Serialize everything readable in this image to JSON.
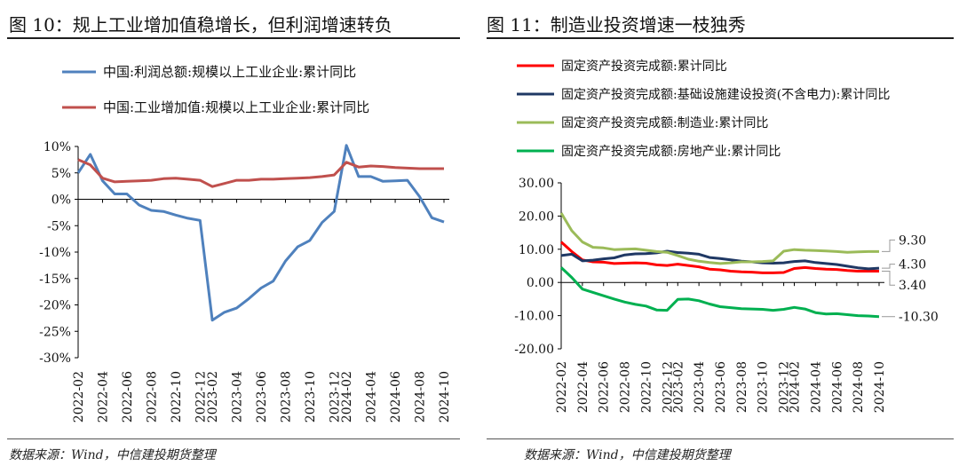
{
  "left_panel": {
    "title": "图 10：规上工业增加值稳增长，但利润增速转负",
    "source": "数据来源：Wind，中信建投期货整理"
  },
  "right_panel": {
    "title": "图 11：制造业投资增速一枝独秀",
    "source": "数据来源：Wind，中信建投期货整理"
  },
  "colors": {
    "blue": "#4f81bd",
    "dark_red": "#c0504d",
    "red": "#ff0000",
    "navy": "#1f3864",
    "light_green": "#9bbb59",
    "green": "#00b050"
  },
  "chart_data": [
    {
      "type": "line",
      "x": [
        "2022-02",
        "2022-03",
        "2022-04",
        "2022-05",
        "2022-06",
        "2022-07",
        "2022-08",
        "2022-09",
        "2022-10",
        "2022-11",
        "2022-12",
        "2023-02",
        "2023-03",
        "2023-04",
        "2023-05",
        "2023-06",
        "2023-07",
        "2023-08",
        "2023-09",
        "2023-10",
        "2023-11",
        "2023-12",
        "2024-02",
        "2024-03",
        "2024-04",
        "2024-05",
        "2024-06",
        "2024-07",
        "2024-08",
        "2024-09",
        "2024-10"
      ],
      "x_ticks": [
        "2022-02",
        "2022-04",
        "2022-06",
        "2022-08",
        "2022-10",
        "2022-12",
        "2023-02",
        "2023-04",
        "2023-06",
        "2023-08",
        "2023-10",
        "2023-12",
        "2024-02",
        "2024-04",
        "2024-06",
        "2024-08",
        "2024-10"
      ],
      "y_ticks": [
        "10%",
        "5%",
        "0%",
        "-5%",
        "-10%",
        "-15%",
        "-20%",
        "-25%",
        "-30%"
      ],
      "ylim": [
        -30,
        10
      ],
      "legend_position": "top",
      "series": [
        {
          "name": "中国:利润总额:规模以上工业企业:累计同比",
          "color": "#4f81bd",
          "values": [
            5.0,
            8.5,
            3.5,
            1.0,
            1.0,
            -1.1,
            -2.1,
            -2.3,
            -3.0,
            -3.6,
            -4.0,
            -22.9,
            -21.4,
            -20.6,
            -18.8,
            -16.8,
            -15.5,
            -11.7,
            -9.0,
            -7.8,
            -4.4,
            -2.3,
            10.2,
            4.3,
            4.3,
            3.4,
            3.5,
            3.6,
            0.5,
            -3.5,
            -4.3
          ]
        },
        {
          "name": "中国:工业增加值:规模以上工业企业:累计同比",
          "color": "#c0504d",
          "values": [
            7.5,
            6.5,
            4.0,
            3.3,
            3.4,
            3.5,
            3.6,
            3.9,
            4.0,
            3.8,
            3.6,
            2.4,
            3.0,
            3.6,
            3.6,
            3.8,
            3.8,
            3.9,
            4.0,
            4.1,
            4.3,
            4.6,
            7.0,
            6.1,
            6.3,
            6.2,
            6.0,
            5.9,
            5.8,
            5.8,
            5.8
          ]
        }
      ]
    },
    {
      "type": "line",
      "x": [
        "2022-02",
        "2022-03",
        "2022-04",
        "2022-05",
        "2022-06",
        "2022-07",
        "2022-08",
        "2022-09",
        "2022-10",
        "2022-11",
        "2022-12",
        "2023-02",
        "2023-03",
        "2023-04",
        "2023-05",
        "2023-06",
        "2023-07",
        "2023-08",
        "2023-09",
        "2023-10",
        "2023-11",
        "2023-12",
        "2024-02",
        "2024-03",
        "2024-04",
        "2024-05",
        "2024-06",
        "2024-07",
        "2024-08",
        "2024-09",
        "2024-10"
      ],
      "x_ticks": [
        "2022-02",
        "2022-04",
        "2022-06",
        "2022-08",
        "2022-10",
        "2022-12",
        "2023-02",
        "2023-04",
        "2023-06",
        "2023-08",
        "2023-10",
        "2023-12",
        "2024-02",
        "2024-04",
        "2024-06",
        "2024-08",
        "2024-10"
      ],
      "y_ticks": [
        "30.00",
        "20.00",
        "10.00",
        "0.00",
        "-10.00",
        "-20.00"
      ],
      "ylim": [
        -20,
        30
      ],
      "legend_position": "top",
      "end_labels": [
        "9.30",
        "4.30",
        "3.40",
        "-10.30"
      ],
      "series": [
        {
          "name": "固定资产投资完成额:累计同比",
          "color": "#ff0000",
          "values": [
            12.2,
            9.3,
            6.8,
            6.2,
            6.1,
            5.7,
            5.8,
            5.9,
            5.8,
            5.3,
            5.1,
            5.5,
            5.1,
            4.7,
            4.0,
            3.8,
            3.4,
            3.2,
            3.1,
            2.9,
            2.9,
            3.0,
            4.2,
            4.5,
            4.2,
            4.0,
            3.9,
            3.6,
            3.4,
            3.4,
            3.4
          ]
        },
        {
          "name": "固定资产投资完成额:基础设施建设投资(不含电力):累计同比",
          "color": "#1f3864",
          "values": [
            8.1,
            8.5,
            6.5,
            6.7,
            7.1,
            7.4,
            8.3,
            8.6,
            8.7,
            8.9,
            9.4,
            9.0,
            8.8,
            8.5,
            7.5,
            7.2,
            6.8,
            6.4,
            6.2,
            5.9,
            5.8,
            5.9,
            6.3,
            6.5,
            6.0,
            5.7,
            5.4,
            4.9,
            4.4,
            4.1,
            4.3
          ]
        },
        {
          "name": "固定资产投资完成额:制造业:累计同比",
          "color": "#9bbb59",
          "values": [
            20.9,
            15.6,
            12.2,
            10.6,
            10.4,
            9.9,
            10.0,
            10.1,
            9.7,
            9.3,
            9.1,
            8.1,
            7.0,
            6.4,
            6.0,
            5.7,
            5.9,
            6.2,
            6.2,
            6.3,
            6.5,
            9.4,
            9.9,
            9.7,
            9.6,
            9.5,
            9.3,
            9.1,
            9.2,
            9.3,
            9.3
          ]
        },
        {
          "name": "固定资产投资完成额:房地产业:累计同比",
          "color": "#00b050",
          "values": [
            4.5,
            1.5,
            -2.0,
            -3.0,
            -4.0,
            -5.0,
            -5.9,
            -6.6,
            -7.1,
            -8.3,
            -8.4,
            -5.1,
            -5.0,
            -5.5,
            -6.5,
            -7.3,
            -7.6,
            -7.9,
            -8.0,
            -8.1,
            -8.4,
            -8.1,
            -7.5,
            -8.0,
            -9.1,
            -9.5,
            -9.4,
            -9.7,
            -10.0,
            -10.1,
            -10.3
          ]
        }
      ]
    }
  ]
}
